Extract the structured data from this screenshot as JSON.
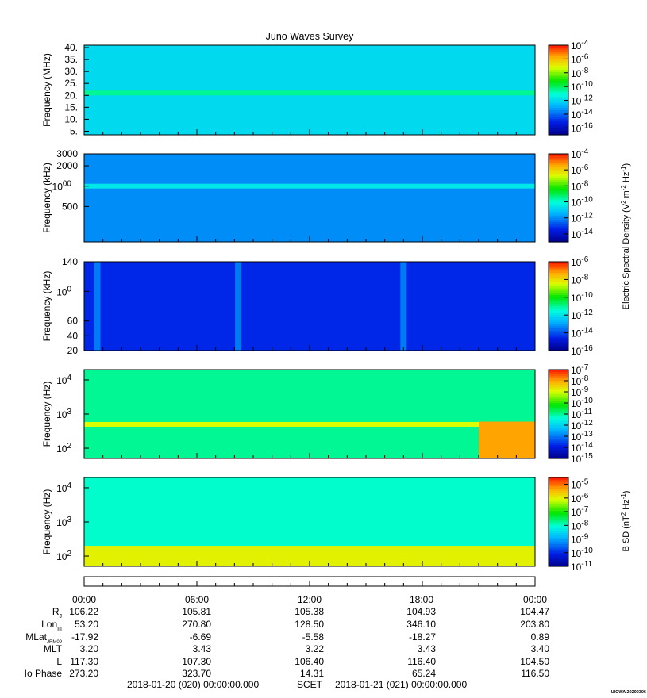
{
  "title": "Juno Waves Survey",
  "chart_data": [
    {
      "type": "heatmap",
      "panel": "HFR high band spectrogram",
      "ylabel": "Frequency (MHz)",
      "ylim": [
        3.5,
        41
      ],
      "yticks": [
        "40.",
        "35.",
        "30.",
        "25.",
        "20.",
        "15.",
        "10.",
        "5."
      ],
      "ytick_values": [
        40,
        35,
        30,
        25,
        20,
        15,
        10,
        5
      ],
      "features": [
        {
          "kind": "emission band",
          "freq_MHz": 21,
          "level": "-10.5"
        }
      ],
      "background_level": -12,
      "colorbar": {
        "range_exp": [
          -17,
          -4
        ],
        "labels": [
          "10-4",
          "10-6",
          "10-8",
          "10-10",
          "10-12",
          "10-14",
          "10-16"
        ],
        "label_exps": [
          -4,
          -6,
          -8,
          -10,
          -12,
          -14,
          -16
        ]
      }
    },
    {
      "type": "heatmap",
      "panel": "HFR low band spectrogram",
      "ylabel": "Frequency (kHz)",
      "ylim": [
        150,
        3000
      ],
      "log_y": true,
      "yticks": [
        "3000",
        "2000",
        "1000",
        "500"
      ],
      "ytick_values": [
        3000,
        2000,
        1000,
        500
      ],
      "features": [
        {
          "kind": "emission band",
          "freq_kHz": 1000,
          "level": -10.5
        }
      ],
      "background_level": -12,
      "colorbar": {
        "range_exp": [
          -15,
          -4
        ],
        "labels": [
          "10-4",
          "10-6",
          "10-8",
          "10-10",
          "10-12",
          "10-14"
        ],
        "label_exps": [
          -4,
          -6,
          -8,
          -10,
          -12,
          -14
        ]
      }
    },
    {
      "type": "heatmap",
      "panel": "LFR high band spectrogram",
      "ylabel": "Frequency (kHz)",
      "ylim": [
        20,
        140
      ],
      "yticks": [
        "140",
        "100",
        "60",
        "40",
        "20"
      ],
      "ytick_values": [
        140,
        100,
        60,
        40,
        20
      ],
      "features": [
        {
          "kind": "burst",
          "hour": 0.7,
          "level": -13.5
        },
        {
          "kind": "burst",
          "hour": 8.2,
          "level": -13.5
        },
        {
          "kind": "burst",
          "hour": 17,
          "level": -13.5
        }
      ],
      "background_level": -14.5,
      "colorbar": {
        "range_exp": [
          -16,
          -6
        ],
        "labels": [
          "10-6",
          "10-8",
          "10-10",
          "10-12",
          "10-14",
          "10-16"
        ],
        "label_exps": [
          -6,
          -8,
          -10,
          -12,
          -14,
          -16
        ]
      }
    },
    {
      "type": "heatmap",
      "panel": "LFR low band spectrogram",
      "ylabel": "Frequency (Hz)",
      "ylim": [
        50,
        20000
      ],
      "log_y": true,
      "yticks": [
        "104",
        "103",
        "102"
      ],
      "ytick_values": [
        10000,
        1000,
        100
      ],
      "features": [
        {
          "kind": "emission line",
          "freq_Hz": 500,
          "level": -9
        },
        {
          "kind": "intensification",
          "hour_range": [
            21,
            24
          ],
          "freq_Hz_range": [
            50,
            600
          ],
          "level": -8
        }
      ],
      "background_level": -11,
      "colorbar": {
        "title": "Electric Spectral Density (V2 m-2 Hz-1)",
        "range_exp": [
          -15,
          -7
        ],
        "labels": [
          "10-7",
          "10-8",
          "10-9",
          "10-10",
          "10-11",
          "10-12",
          "10-13",
          "10-14",
          "10-15"
        ],
        "label_exps": [
          -7,
          -8,
          -9,
          -10,
          -11,
          -12,
          -13,
          -14,
          -15
        ]
      }
    },
    {
      "type": "heatmap",
      "panel": "Magnetic spectrogram",
      "ylabel": "Frequency (Hz)",
      "ylim": [
        50,
        20000
      ],
      "log_y": true,
      "yticks": [
        "104",
        "103",
        "102"
      ],
      "ytick_values": [
        10000,
        1000,
        100
      ],
      "features": [
        {
          "kind": "spikes",
          "freq_Hz_range": [
            50,
            200
          ],
          "level": -6
        }
      ],
      "background_level": -8,
      "colorbar": {
        "title": "B SD (nT2 Hz-1)",
        "range_exp": [
          -11,
          -4.5
        ],
        "labels": [
          "10-5",
          "10-6",
          "10-7",
          "10-8",
          "10-9",
          "10-10",
          "10-11"
        ],
        "label_exps": [
          -5,
          -6,
          -7,
          -8,
          -9,
          -10,
          -11
        ]
      }
    }
  ],
  "colorbar_title_electric": "Electric Spectral Density (V2 m-2 Hz-1)",
  "colorbar_title_magnetic": "B SD (nT2 Hz-1)",
  "time_axis": {
    "labels": [
      "00:00",
      "06:00",
      "12:00",
      "18:00",
      "00:00"
    ],
    "hours": [
      0,
      6,
      12,
      18,
      24
    ]
  },
  "ephemeris": [
    {
      "label": "Rj",
      "values": [
        "106.22",
        "105.81",
        "105.38",
        "104.93",
        "104.47"
      ]
    },
    {
      "label": "LonIII",
      "values": [
        "53.20",
        "270.80",
        "128.50",
        "346.10",
        "203.80"
      ]
    },
    {
      "label": "MLatJRM09",
      "values": [
        "-17.92",
        "-6.69",
        "-5.58",
        "-18.27",
        "0.89"
      ]
    },
    {
      "label": "MLT",
      "values": [
        "3.20",
        "3.43",
        "3.22",
        "3.43",
        "3.40"
      ]
    },
    {
      "label": "L",
      "values": [
        "117.30",
        "107.30",
        "106.40",
        "116.40",
        "104.50"
      ]
    },
    {
      "label": "Io Phase",
      "values": [
        "273.20",
        "323.70",
        "14.31",
        "65.24",
        "116.50"
      ]
    }
  ],
  "footer": {
    "start": "2018-01-20 (020) 00:00:00.000",
    "scet": "SCET",
    "end": "2018-01-21 (021) 00:00:00.000",
    "stamp": "UIOWA 20200306"
  }
}
